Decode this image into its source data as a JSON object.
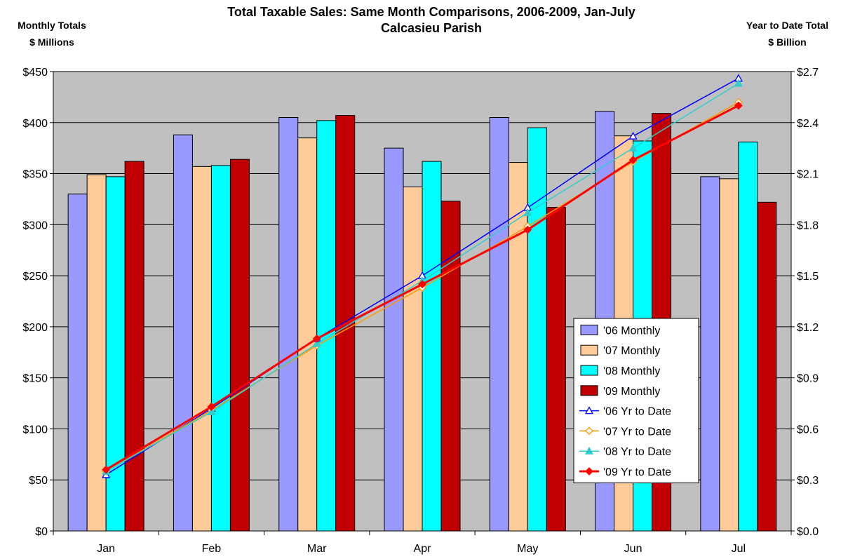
{
  "chart_data": {
    "type": "bar",
    "title": "Total Taxable Sales:  Same Month Comparisons, 2006-2009, Jan-July",
    "subtitle": "Calcasieu Parish",
    "ylabel_left": [
      "Monthly Totals",
      "$ Millions"
    ],
    "ylabel_right": [
      "Year to Date Total",
      "$ Billion"
    ],
    "categories": [
      "Jan",
      "Feb",
      "Mar",
      "Apr",
      "May",
      "Jun",
      "Jul"
    ],
    "ylim_left": [
      0,
      450
    ],
    "yticks_left": [
      "$0",
      "$50",
      "$100",
      "$150",
      "$200",
      "$250",
      "$300",
      "$350",
      "$400",
      "$450"
    ],
    "ylim_right": [
      0,
      2.7
    ],
    "yticks_right": [
      "$0.0",
      "$0.3",
      "$0.6",
      "$0.9",
      "$1.2",
      "$1.5",
      "$1.8",
      "$2.1",
      "$2.4",
      "$2.7"
    ],
    "grid": true,
    "plot_background": "#c0c0c0",
    "legend_position": "lower-right",
    "bar_series": [
      {
        "name": "'06 Monthly",
        "color": "#9999ff",
        "values": [
          330,
          388,
          405,
          375,
          405,
          411,
          347
        ]
      },
      {
        "name": "'07 Monthly",
        "color": "#ffcc99",
        "values": [
          349,
          357,
          385,
          337,
          361,
          387,
          345
        ]
      },
      {
        "name": "'08 Monthly",
        "color": "#00ffff",
        "values": [
          347,
          358,
          402,
          362,
          395,
          382,
          381
        ]
      },
      {
        "name": "'09 Monthly",
        "color": "#c00000",
        "values": [
          362,
          364,
          407,
          323,
          317,
          409,
          322
        ]
      }
    ],
    "line_series": [
      {
        "name": "'06 Yr to Date",
        "color": "#0000ff",
        "marker": "triangle-open",
        "values": [
          0.33,
          0.72,
          1.13,
          1.5,
          1.9,
          2.32,
          2.66
        ]
      },
      {
        "name": "'07 Yr to Date",
        "color": "#ff9900",
        "marker": "diamond-open",
        "values": [
          0.35,
          0.71,
          1.09,
          1.43,
          1.79,
          2.17,
          2.52
        ]
      },
      {
        "name": "'08 Yr to Date",
        "color": "#33cccc",
        "marker": "triangle",
        "values": [
          0.35,
          0.7,
          1.1,
          1.47,
          1.87,
          2.25,
          2.63
        ]
      },
      {
        "name": "'09 Yr to Date",
        "color": "#ff0000",
        "marker": "diamond",
        "values": [
          0.36,
          0.73,
          1.13,
          1.45,
          1.77,
          2.18,
          2.5
        ]
      }
    ]
  }
}
